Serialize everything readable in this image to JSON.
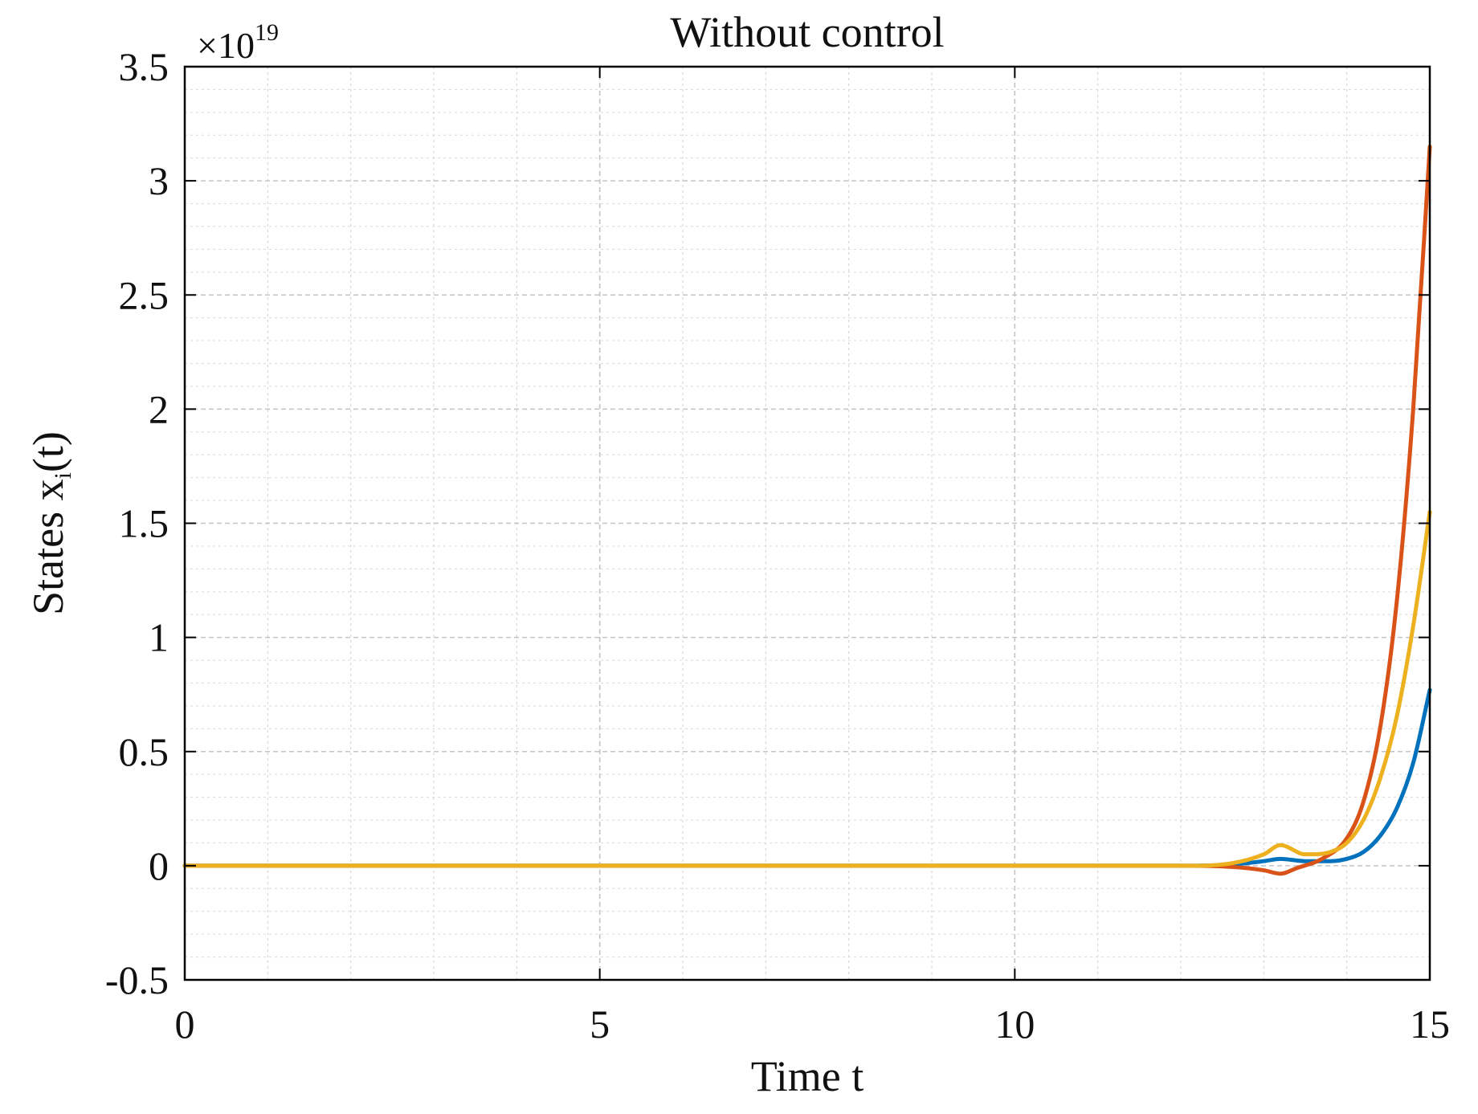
{
  "chart_data": {
    "type": "line",
    "title": "Without control",
    "xlabel": "Time t",
    "ylabel_main": "States x",
    "ylabel_sub": "i",
    "ylabel_tail": "(t)",
    "y_multiplier_base": "×10",
    "y_multiplier_exp": "19",
    "xlim": [
      0,
      15
    ],
    "ylim": [
      -0.5,
      3.5
    ],
    "x_ticks": [
      0,
      5,
      10,
      15
    ],
    "x_tick_labels": [
      "0",
      "5",
      "10",
      "15"
    ],
    "y_ticks": [
      -0.5,
      0,
      0.5,
      1,
      1.5,
      2,
      2.5,
      3,
      3.5
    ],
    "y_tick_labels": [
      "-0.5",
      "0",
      "0.5",
      "1",
      "1.5",
      "2",
      "2.5",
      "3",
      "3.5"
    ],
    "grid": true,
    "minor_grid": true,
    "series": [
      {
        "color": "#0072BD",
        "x": [
          0,
          12.0,
          12.6,
          13.0,
          13.2,
          13.5,
          13.8,
          14.0,
          14.2,
          14.4,
          14.6,
          14.8,
          15.0
        ],
        "y": [
          0,
          0,
          0.005,
          0.02,
          0.03,
          0.02,
          0.02,
          0.03,
          0.06,
          0.13,
          0.25,
          0.45,
          0.77
        ]
      },
      {
        "color": "#D95319",
        "x": [
          0,
          12.0,
          12.6,
          13.0,
          13.2,
          13.4,
          13.7,
          14.0,
          14.2,
          14.4,
          14.6,
          14.8,
          15.0
        ],
        "y": [
          0,
          0,
          -0.005,
          -0.02,
          -0.035,
          -0.01,
          0.03,
          0.12,
          0.28,
          0.6,
          1.15,
          2.0,
          3.15
        ]
      },
      {
        "color": "#EDB120",
        "x": [
          0,
          12.0,
          12.6,
          13.0,
          13.2,
          13.5,
          13.8,
          14.0,
          14.2,
          14.4,
          14.6,
          14.8,
          15.0
        ],
        "y": [
          0,
          0,
          0.01,
          0.05,
          0.09,
          0.05,
          0.06,
          0.1,
          0.2,
          0.38,
          0.65,
          1.05,
          1.55
        ]
      }
    ]
  }
}
